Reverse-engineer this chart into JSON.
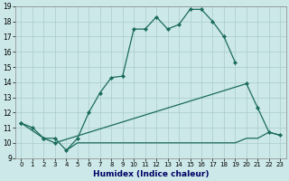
{
  "xlabel": "Humidex (Indice chaleur)",
  "bg_color": "#cce8e8",
  "grid_color": "#aacccc",
  "line_color": "#1a6b5a",
  "ylim": [
    9,
    19
  ],
  "xlim": [
    -0.5,
    23.5
  ],
  "yticks": [
    9,
    10,
    11,
    12,
    13,
    14,
    15,
    16,
    17,
    18,
    19
  ],
  "xticks": [
    0,
    1,
    2,
    3,
    4,
    5,
    6,
    7,
    8,
    9,
    10,
    11,
    12,
    13,
    14,
    15,
    16,
    17,
    18,
    19,
    20,
    21,
    22,
    23
  ],
  "line1_x": [
    0,
    1,
    2,
    3,
    4,
    5,
    6,
    7,
    8,
    9,
    10,
    11,
    12,
    13,
    14,
    15,
    16,
    17,
    18,
    19
  ],
  "line1_y": [
    11.3,
    11.0,
    10.3,
    10.3,
    9.5,
    10.3,
    12.0,
    13.3,
    14.3,
    14.4,
    17.5,
    17.5,
    18.3,
    17.5,
    17.8,
    18.8,
    18.8,
    18.0,
    17.0,
    15.3
  ],
  "line2_x": [
    0,
    2,
    3,
    20,
    21,
    22,
    23
  ],
  "line2_y": [
    11.3,
    10.3,
    10.0,
    13.9,
    12.3,
    10.7,
    10.5
  ],
  "line3_x": [
    4,
    5,
    6,
    7,
    8,
    9,
    10,
    11,
    12,
    13,
    14,
    15,
    16,
    17,
    18,
    19,
    20,
    21,
    22,
    23
  ],
  "line3_y": [
    9.5,
    10.0,
    10.0,
    10.0,
    10.0,
    10.0,
    10.0,
    10.0,
    10.0,
    10.0,
    10.0,
    10.0,
    10.0,
    10.0,
    10.0,
    10.0,
    10.3,
    10.3,
    10.7,
    10.5
  ],
  "tick_fontsize": 5.5,
  "xlabel_fontsize": 6.5,
  "xlabel_color": "#000066"
}
